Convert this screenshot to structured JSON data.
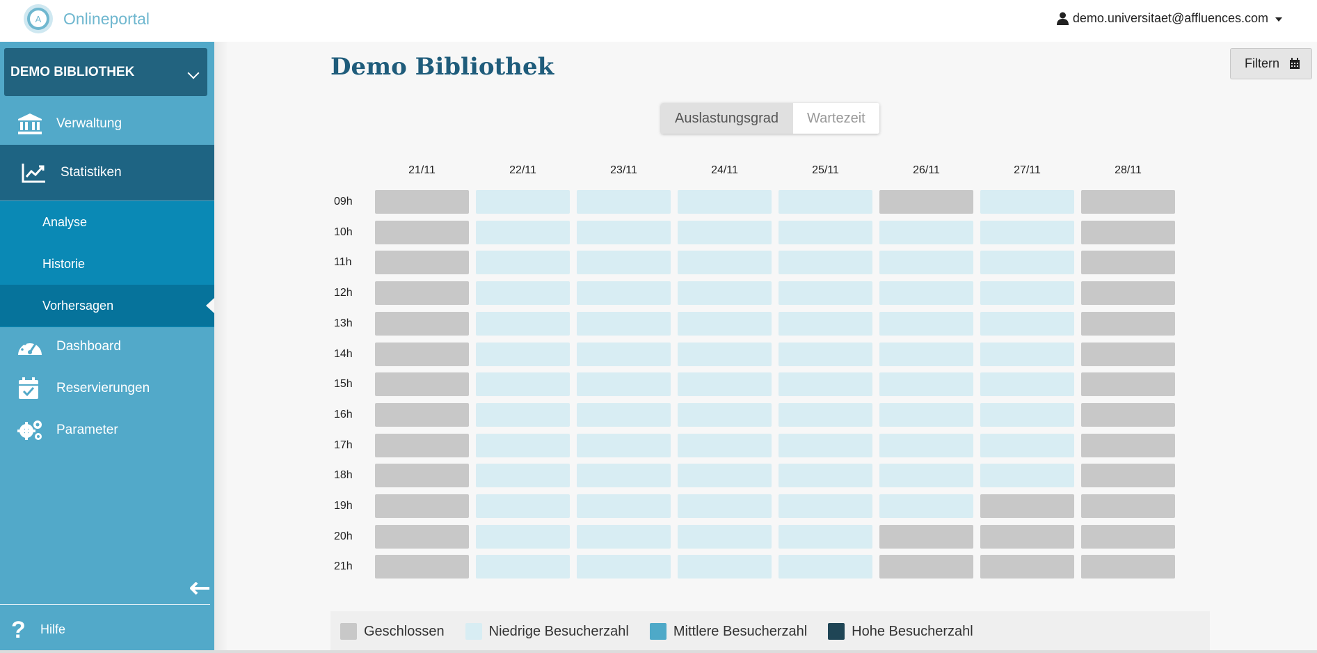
{
  "header": {
    "app_name": "Onlineportal",
    "logo_letter": "A",
    "user_email": "demo.universitaet@affluences.com"
  },
  "sidebar": {
    "library_select": "DEMO BIBLIOTHEK",
    "items": [
      {
        "label": "Verwaltung",
        "icon": "bank-icon"
      },
      {
        "label": "Statistiken",
        "icon": "chart-line-icon",
        "active": true
      },
      {
        "label": "Dashboard",
        "icon": "gauge-icon"
      },
      {
        "label": "Reservierungen",
        "icon": "calendar-check-icon"
      },
      {
        "label": "Parameter",
        "icon": "gears-icon"
      }
    ],
    "sub_items": [
      {
        "label": "Analyse"
      },
      {
        "label": "Historie"
      },
      {
        "label": "Vorhersagen",
        "selected": true
      }
    ],
    "help_label": "Hilfe",
    "help_glyph": "?"
  },
  "main": {
    "title": "Demo Bibliothek",
    "filter_label": "Filtern",
    "toggle": {
      "active": "Auslastungsgrad",
      "inactive": "Wartezeit"
    }
  },
  "chart_data": {
    "type": "heatmap",
    "columns": [
      "21/11",
      "22/11",
      "23/11",
      "24/11",
      "25/11",
      "26/11",
      "27/11",
      "28/11"
    ],
    "rows": [
      "09h",
      "10h",
      "11h",
      "12h",
      "13h",
      "14h",
      "15h",
      "16h",
      "17h",
      "18h",
      "19h",
      "20h",
      "21h"
    ],
    "values": [
      [
        "closed",
        "low",
        "low",
        "low",
        "low",
        "closed",
        "low",
        "closed"
      ],
      [
        "closed",
        "low",
        "low",
        "low",
        "low",
        "low",
        "low",
        "closed"
      ],
      [
        "closed",
        "low",
        "low",
        "low",
        "low",
        "low",
        "low",
        "closed"
      ],
      [
        "closed",
        "low",
        "low",
        "low",
        "low",
        "low",
        "low",
        "closed"
      ],
      [
        "closed",
        "low",
        "low",
        "low",
        "low",
        "low",
        "low",
        "closed"
      ],
      [
        "closed",
        "low",
        "low",
        "low",
        "low",
        "low",
        "low",
        "closed"
      ],
      [
        "closed",
        "low",
        "low",
        "low",
        "low",
        "low",
        "low",
        "closed"
      ],
      [
        "closed",
        "low",
        "low",
        "low",
        "low",
        "low",
        "low",
        "closed"
      ],
      [
        "closed",
        "low",
        "low",
        "low",
        "low",
        "low",
        "low",
        "closed"
      ],
      [
        "closed",
        "low",
        "low",
        "low",
        "low",
        "low",
        "low",
        "closed"
      ],
      [
        "closed",
        "low",
        "low",
        "low",
        "low",
        "low",
        "closed",
        "closed"
      ],
      [
        "closed",
        "low",
        "low",
        "low",
        "low",
        "closed",
        "closed",
        "closed"
      ],
      [
        "closed",
        "low",
        "low",
        "low",
        "low",
        "closed",
        "closed",
        "closed"
      ]
    ],
    "legend": [
      {
        "key": "closed",
        "label": "Geschlossen",
        "color": "#c8c8c8"
      },
      {
        "key": "low",
        "label": "Niedrige Besucherzahl",
        "color": "#d8edf3"
      },
      {
        "key": "medium",
        "label": "Mittlere Besucherzahl",
        "color": "#4ea9c8"
      },
      {
        "key": "high",
        "label": "Hohe Besucherzahl",
        "color": "#1f4555"
      }
    ]
  }
}
